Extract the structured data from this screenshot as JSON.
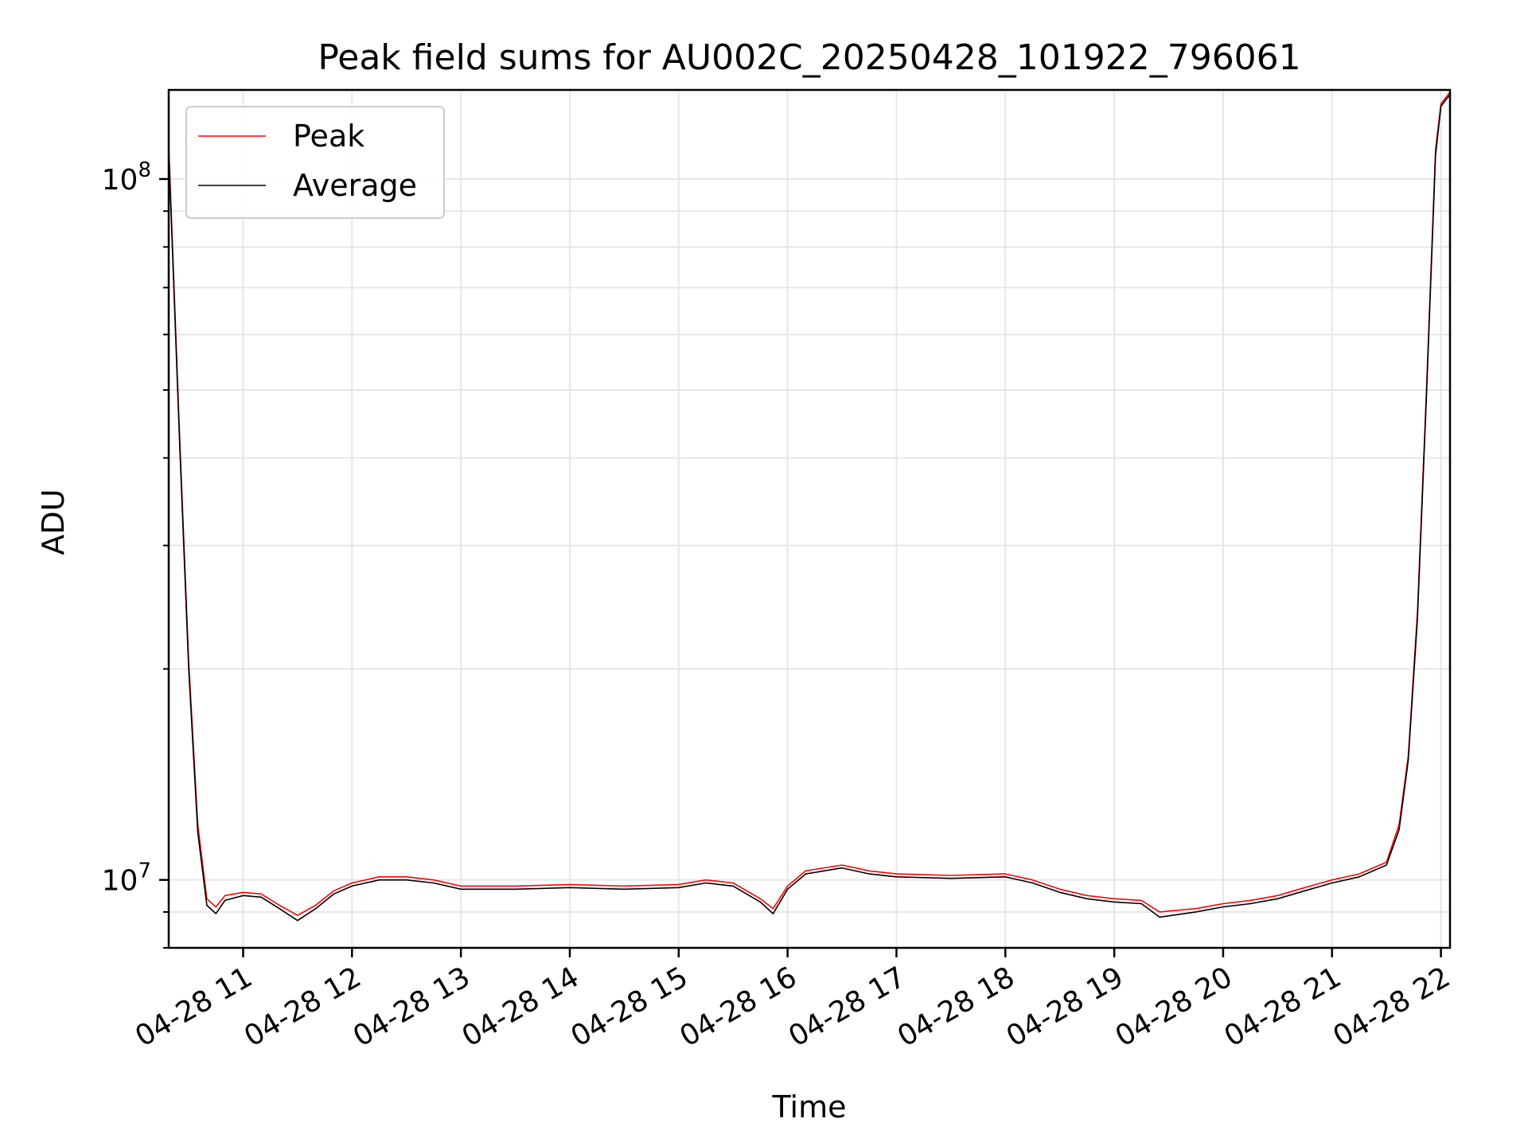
{
  "chart_data": {
    "type": "line",
    "title": "Peak field sums for AU002C_20250428_101922_796061",
    "xlabel": "Time",
    "ylabel": "ADU",
    "y_scale": "log",
    "ylim": [
      8000000.0,
      134000000.0
    ],
    "xlim": [
      "2025-04-28T10:19",
      "2025-04-28T22:05"
    ],
    "x_ticks": [
      "04-28 11",
      "04-28 12",
      "04-28 13",
      "04-28 14",
      "04-28 15",
      "04-28 16",
      "04-28 17",
      "04-28 18",
      "04-28 19",
      "04-28 20",
      "04-28 21",
      "04-28 22"
    ],
    "y_ticks": [
      {
        "value": 10000000,
        "base": "10",
        "exp": "7"
      },
      {
        "value": 100000000,
        "base": "10",
        "exp": "8"
      }
    ],
    "grid": true,
    "legend_position": "top-left",
    "series": [
      {
        "name": "Peak",
        "color": "#ff0000",
        "points": [
          [
            "2025-04-28T10:19",
            112000000.0
          ],
          [
            "2025-04-28T10:25",
            43000000.0
          ],
          [
            "2025-04-28T10:30",
            20500000.0
          ],
          [
            "2025-04-28T10:35",
            12000000.0
          ],
          [
            "2025-04-28T10:40",
            9400000.0
          ],
          [
            "2025-04-28T10:45",
            9150000.0
          ],
          [
            "2025-04-28T10:50",
            9500000.0
          ],
          [
            "2025-04-28T11:00",
            9600000.0
          ],
          [
            "2025-04-28T11:10",
            9550000.0
          ],
          [
            "2025-04-28T11:20",
            9200000.0
          ],
          [
            "2025-04-28T11:30",
            8900000.0
          ],
          [
            "2025-04-28T11:40",
            9200000.0
          ],
          [
            "2025-04-28T11:50",
            9650000.0
          ],
          [
            "2025-04-28T12:00",
            9900000.0
          ],
          [
            "2025-04-28T12:15",
            10100000.0
          ],
          [
            "2025-04-28T12:30",
            10100000.0
          ],
          [
            "2025-04-28T12:45",
            10000000.0
          ],
          [
            "2025-04-28T13:00",
            9800000.0
          ],
          [
            "2025-04-28T13:30",
            9800000.0
          ],
          [
            "2025-04-28T14:00",
            9850000.0
          ],
          [
            "2025-04-28T14:30",
            9800000.0
          ],
          [
            "2025-04-28T15:00",
            9850000.0
          ],
          [
            "2025-04-28T15:15",
            10000000.0
          ],
          [
            "2025-04-28T15:30",
            9900000.0
          ],
          [
            "2025-04-28T15:45",
            9400000.0
          ],
          [
            "2025-04-28T15:52",
            9100000.0
          ],
          [
            "2025-04-28T16:00",
            9800000.0
          ],
          [
            "2025-04-28T16:10",
            10300000.0
          ],
          [
            "2025-04-28T16:30",
            10500000.0
          ],
          [
            "2025-04-28T16:45",
            10300000.0
          ],
          [
            "2025-04-28T17:00",
            10200000.0
          ],
          [
            "2025-04-28T17:30",
            10150000.0
          ],
          [
            "2025-04-28T18:00",
            10200000.0
          ],
          [
            "2025-04-28T18:15",
            10000000.0
          ],
          [
            "2025-04-28T18:30",
            9700000.0
          ],
          [
            "2025-04-28T18:45",
            9500000.0
          ],
          [
            "2025-04-28T19:00",
            9400000.0
          ],
          [
            "2025-04-28T19:15",
            9350000.0
          ],
          [
            "2025-04-28T19:25",
            9000000.0
          ],
          [
            "2025-04-28T19:45",
            9100000.0
          ],
          [
            "2025-04-28T20:00",
            9250000.0
          ],
          [
            "2025-04-28T20:15",
            9350000.0
          ],
          [
            "2025-04-28T20:30",
            9500000.0
          ],
          [
            "2025-04-28T20:45",
            9750000.0
          ],
          [
            "2025-04-28T21:00",
            10000000.0
          ],
          [
            "2025-04-28T21:15",
            10200000.0
          ],
          [
            "2025-04-28T21:30",
            10600000.0
          ],
          [
            "2025-04-28T21:37",
            12000000.0
          ],
          [
            "2025-04-28T21:42",
            15000000.0
          ],
          [
            "2025-04-28T21:47",
            24000000.0
          ],
          [
            "2025-04-28T21:52",
            50000000.0
          ],
          [
            "2025-04-28T21:57",
            110000000.0
          ],
          [
            "2025-04-28T22:00",
            128000000.0
          ],
          [
            "2025-04-28T22:05",
            133000000.0
          ]
        ]
      },
      {
        "name": "Average",
        "color": "#000000",
        "points": [
          [
            "2025-04-28T10:19",
            110000000.0
          ],
          [
            "2025-04-28T10:25",
            42000000.0
          ],
          [
            "2025-04-28T10:30",
            20000000.0
          ],
          [
            "2025-04-28T10:35",
            11700000.0
          ],
          [
            "2025-04-28T10:40",
            9200000.0
          ],
          [
            "2025-04-28T10:45",
            8950000.0
          ],
          [
            "2025-04-28T10:50",
            9350000.0
          ],
          [
            "2025-04-28T11:00",
            9500000.0
          ],
          [
            "2025-04-28T11:10",
            9450000.0
          ],
          [
            "2025-04-28T11:20",
            9100000.0
          ],
          [
            "2025-04-28T11:30",
            8750000.0
          ],
          [
            "2025-04-28T11:40",
            9100000.0
          ],
          [
            "2025-04-28T11:50",
            9550000.0
          ],
          [
            "2025-04-28T12:00",
            9800000.0
          ],
          [
            "2025-04-28T12:15",
            10000000.0
          ],
          [
            "2025-04-28T12:30",
            10000000.0
          ],
          [
            "2025-04-28T12:45",
            9900000.0
          ],
          [
            "2025-04-28T13:00",
            9700000.0
          ],
          [
            "2025-04-28T13:30",
            9700000.0
          ],
          [
            "2025-04-28T14:00",
            9750000.0
          ],
          [
            "2025-04-28T14:30",
            9700000.0
          ],
          [
            "2025-04-28T15:00",
            9750000.0
          ],
          [
            "2025-04-28T15:15",
            9900000.0
          ],
          [
            "2025-04-28T15:30",
            9800000.0
          ],
          [
            "2025-04-28T15:45",
            9300000.0
          ],
          [
            "2025-04-28T15:52",
            8950000.0
          ],
          [
            "2025-04-28T16:00",
            9700000.0
          ],
          [
            "2025-04-28T16:10",
            10200000.0
          ],
          [
            "2025-04-28T16:30",
            10400000.0
          ],
          [
            "2025-04-28T16:45",
            10200000.0
          ],
          [
            "2025-04-28T17:00",
            10100000.0
          ],
          [
            "2025-04-28T17:30",
            10050000.0
          ],
          [
            "2025-04-28T18:00",
            10100000.0
          ],
          [
            "2025-04-28T18:15",
            9900000.0
          ],
          [
            "2025-04-28T18:30",
            9600000.0
          ],
          [
            "2025-04-28T18:45",
            9400000.0
          ],
          [
            "2025-04-28T19:00",
            9300000.0
          ],
          [
            "2025-04-28T19:15",
            9250000.0
          ],
          [
            "2025-04-28T19:25",
            8850000.0
          ],
          [
            "2025-04-28T19:45",
            9000000.0
          ],
          [
            "2025-04-28T20:00",
            9150000.0
          ],
          [
            "2025-04-28T20:15",
            9250000.0
          ],
          [
            "2025-04-28T20:30",
            9400000.0
          ],
          [
            "2025-04-28T20:45",
            9650000.0
          ],
          [
            "2025-04-28T21:00",
            9900000.0
          ],
          [
            "2025-04-28T21:15",
            10100000.0
          ],
          [
            "2025-04-28T21:30",
            10500000.0
          ],
          [
            "2025-04-28T21:37",
            11800000.0
          ],
          [
            "2025-04-28T21:42",
            14800000.0
          ],
          [
            "2025-04-28T21:47",
            23500000.0
          ],
          [
            "2025-04-28T21:52",
            49000000.0
          ],
          [
            "2025-04-28T21:57",
            108000000.0
          ],
          [
            "2025-04-28T22:00",
            127000000.0
          ],
          [
            "2025-04-28T22:05",
            132000000.0
          ]
        ]
      }
    ]
  }
}
